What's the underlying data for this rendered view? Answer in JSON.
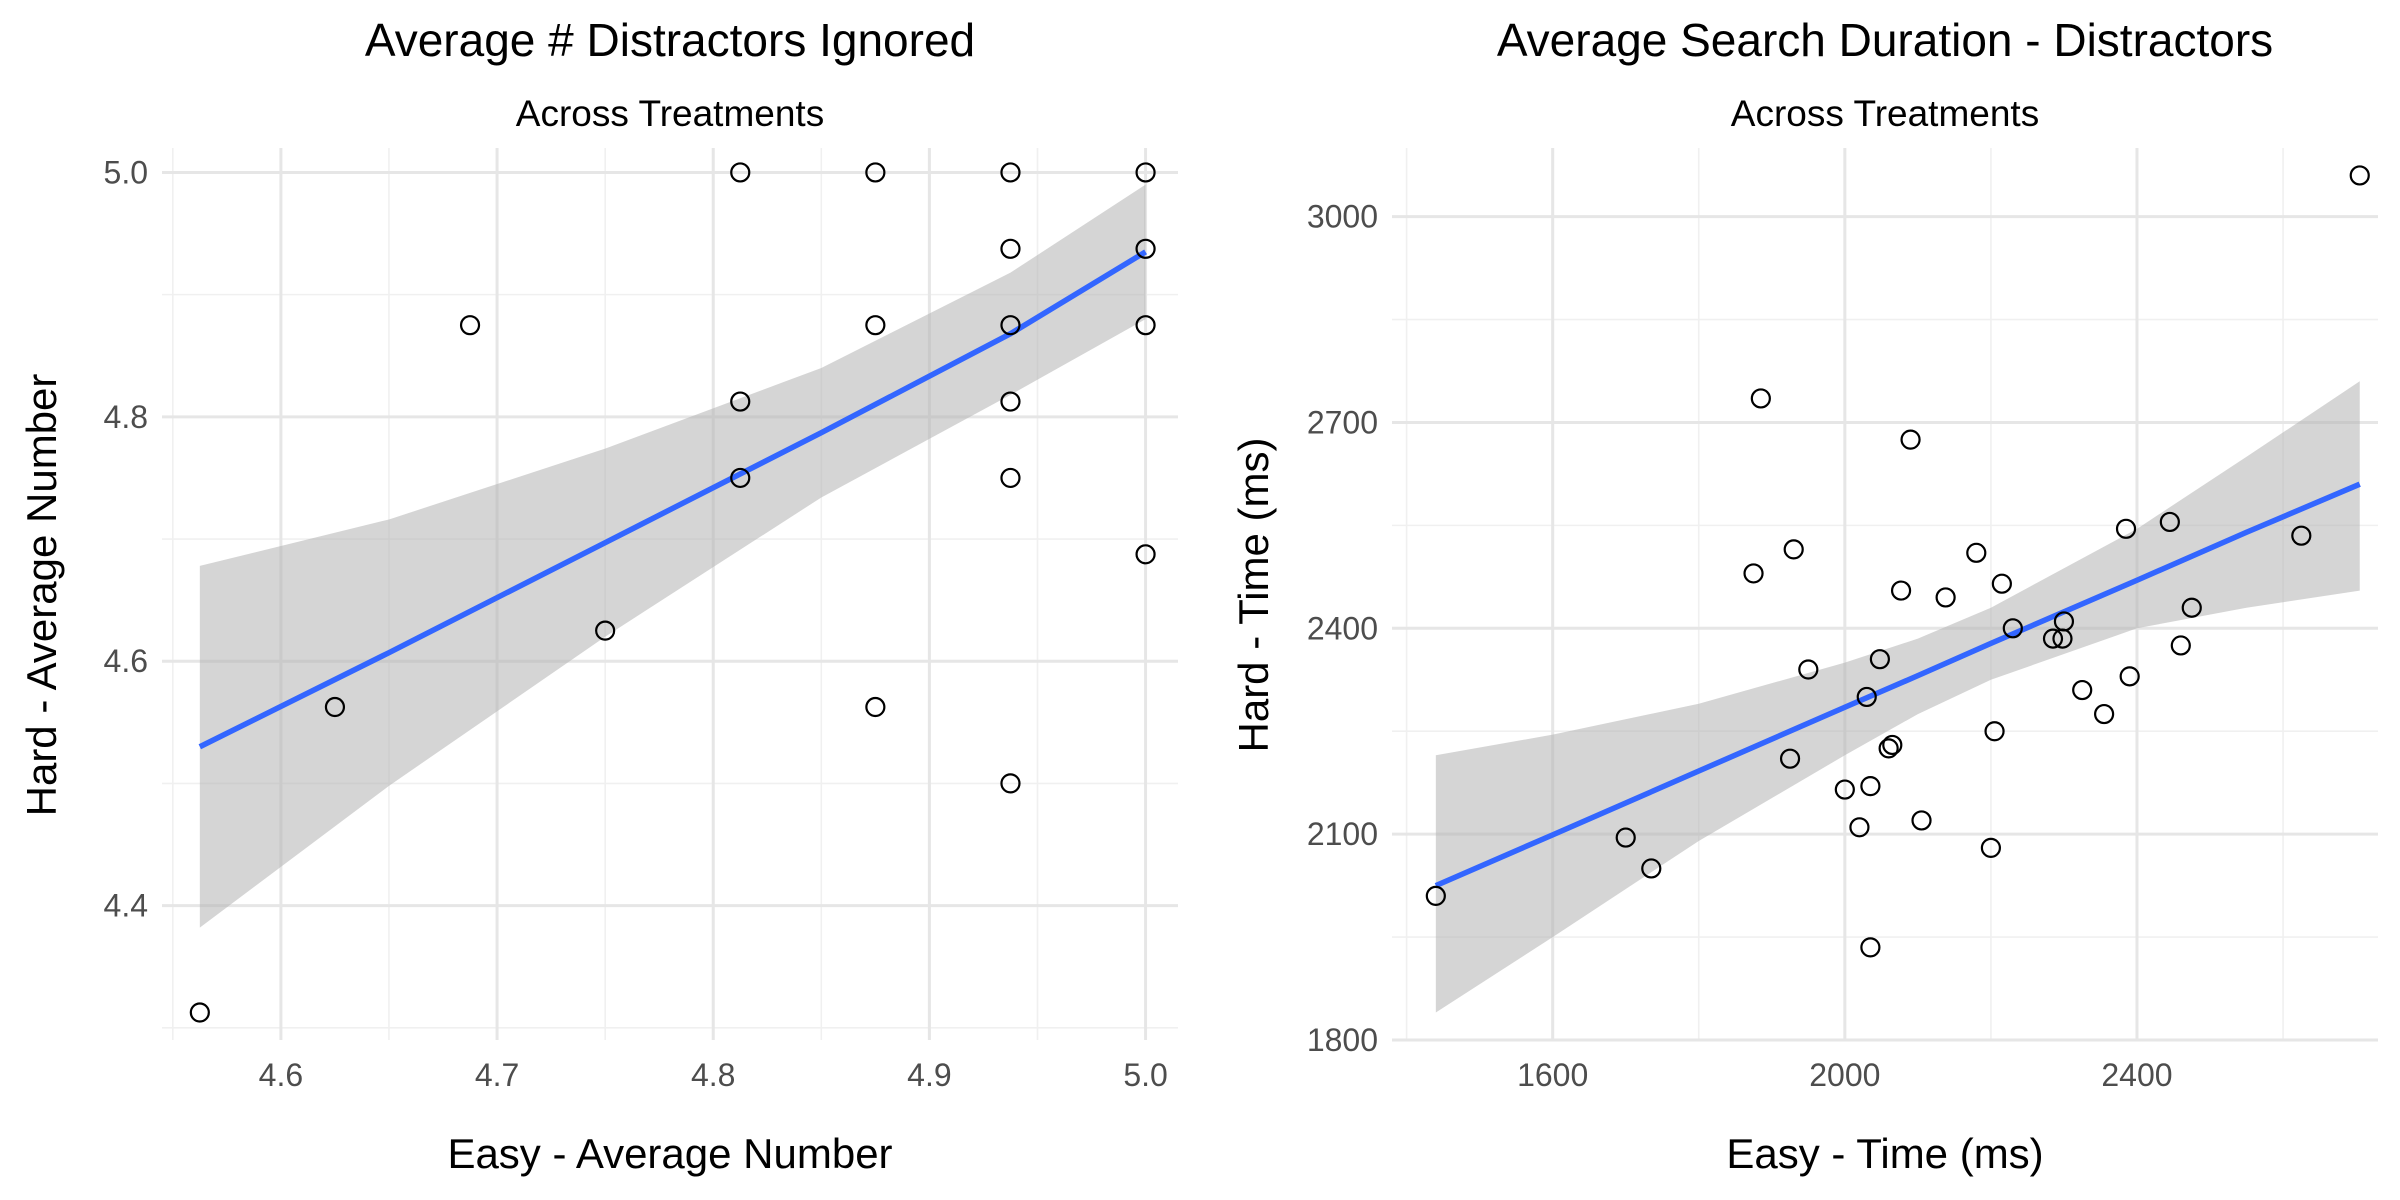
{
  "chart_data": [
    {
      "type": "scatter",
      "title": "Average # Distractors Ignored",
      "subtitle": "Across Treatments",
      "xlabel": "Easy - Average Number",
      "ylabel": "Hard - Average Number",
      "xlim": [
        4.545,
        5.015
      ],
      "ylim": [
        4.29,
        5.02
      ],
      "x_ticks": [
        4.6,
        4.7,
        4.8,
        4.9,
        5.0
      ],
      "y_ticks": [
        4.4,
        4.6,
        4.8,
        5.0
      ],
      "x_tick_labels": [
        "4.6",
        "4.7",
        "4.8",
        "4.9",
        "5.0"
      ],
      "y_tick_labels": [
        "4.4",
        "4.6",
        "4.8",
        "5.0"
      ],
      "grid": true,
      "points": [
        {
          "x": 4.5625,
          "y": 4.3125
        },
        {
          "x": 4.625,
          "y": 4.5625
        },
        {
          "x": 4.6875,
          "y": 4.875
        },
        {
          "x": 4.75,
          "y": 4.625
        },
        {
          "x": 4.8125,
          "y": 5.0
        },
        {
          "x": 4.8125,
          "y": 4.8125
        },
        {
          "x": 4.8125,
          "y": 4.75
        },
        {
          "x": 4.875,
          "y": 5.0
        },
        {
          "x": 4.875,
          "y": 4.875
        },
        {
          "x": 4.875,
          "y": 4.5625
        },
        {
          "x": 4.9375,
          "y": 5.0
        },
        {
          "x": 4.9375,
          "y": 4.9375
        },
        {
          "x": 4.9375,
          "y": 4.875
        },
        {
          "x": 4.9375,
          "y": 4.8125
        },
        {
          "x": 4.9375,
          "y": 4.75
        },
        {
          "x": 4.9375,
          "y": 4.5
        },
        {
          "x": 5.0,
          "y": 5.0
        },
        {
          "x": 5.0,
          "y": 4.9375
        },
        {
          "x": 5.0,
          "y": 4.875
        },
        {
          "x": 5.0,
          "y": 4.6875
        }
      ],
      "fit": {
        "x": [
          4.5625,
          4.65,
          4.75,
          4.85,
          4.9375,
          5.0
        ],
        "y": [
          4.53,
          4.607,
          4.697,
          4.787,
          4.868,
          4.935
        ],
        "lower": [
          4.382,
          4.498,
          4.62,
          4.734,
          4.818,
          4.88
        ],
        "upper": [
          4.678,
          4.716,
          4.774,
          4.84,
          4.918,
          4.99
        ]
      },
      "colors": {
        "points": "#000000",
        "fit": "#3366ff",
        "band": "#b3b3b3"
      }
    },
    {
      "type": "scatter",
      "title": "Average Search Duration - Distractors",
      "subtitle": "Across Treatments",
      "xlabel": "Easy - Time (ms)",
      "ylabel": "Hard - Time (ms)",
      "xlim": [
        1380,
        2730
      ],
      "ylim": [
        1800,
        3100
      ],
      "x_ticks": [
        1600,
        2000,
        2400
      ],
      "y_ticks": [
        1800,
        2100,
        2400,
        2700,
        3000
      ],
      "x_tick_labels": [
        "1600",
        "2000",
        "2400"
      ],
      "y_tick_labels": [
        "1800",
        "2100",
        "2400",
        "2700",
        "3000"
      ],
      "grid": true,
      "points": [
        {
          "x": 1440,
          "y": 2010
        },
        {
          "x": 1700,
          "y": 2095
        },
        {
          "x": 1735,
          "y": 2050
        },
        {
          "x": 1875,
          "y": 2480
        },
        {
          "x": 1885,
          "y": 2735
        },
        {
          "x": 1925,
          "y": 2210
        },
        {
          "x": 1930,
          "y": 2515
        },
        {
          "x": 1950,
          "y": 2340
        },
        {
          "x": 2000,
          "y": 2165
        },
        {
          "x": 2020,
          "y": 2110
        },
        {
          "x": 2030,
          "y": 2300
        },
        {
          "x": 2035,
          "y": 1935
        },
        {
          "x": 2035,
          "y": 2170
        },
        {
          "x": 2048,
          "y": 2355
        },
        {
          "x": 2060,
          "y": 2225
        },
        {
          "x": 2065,
          "y": 2230
        },
        {
          "x": 2077,
          "y": 2455
        },
        {
          "x": 2090,
          "y": 2675
        },
        {
          "x": 2105,
          "y": 2120
        },
        {
          "x": 2138,
          "y": 2445
        },
        {
          "x": 2180,
          "y": 2510
        },
        {
          "x": 2200,
          "y": 2080
        },
        {
          "x": 2205,
          "y": 2250
        },
        {
          "x": 2215,
          "y": 2465
        },
        {
          "x": 2230,
          "y": 2400
        },
        {
          "x": 2285,
          "y": 2385
        },
        {
          "x": 2298,
          "y": 2385
        },
        {
          "x": 2300,
          "y": 2410
        },
        {
          "x": 2325,
          "y": 2310
        },
        {
          "x": 2355,
          "y": 2275
        },
        {
          "x": 2385,
          "y": 2545
        },
        {
          "x": 2390,
          "y": 2330
        },
        {
          "x": 2445,
          "y": 2555
        },
        {
          "x": 2460,
          "y": 2375
        },
        {
          "x": 2475,
          "y": 2430
        },
        {
          "x": 2625,
          "y": 2535
        },
        {
          "x": 2705,
          "y": 3060
        }
      ],
      "fit": {
        "x": [
          1440,
          1600,
          1800,
          2000,
          2100,
          2200,
          2400,
          2550,
          2705
        ],
        "y": [
          2025,
          2099,
          2192,
          2285,
          2331,
          2378,
          2470,
          2540,
          2610
        ],
        "lower": [
          1840,
          1950,
          2090,
          2215,
          2275,
          2325,
          2400,
          2430,
          2455
        ],
        "upper": [
          2215,
          2245,
          2290,
          2350,
          2385,
          2430,
          2545,
          2650,
          2760
        ]
      },
      "colors": {
        "points": "#000000",
        "fit": "#3366ff",
        "band": "#b3b3b3"
      }
    }
  ]
}
